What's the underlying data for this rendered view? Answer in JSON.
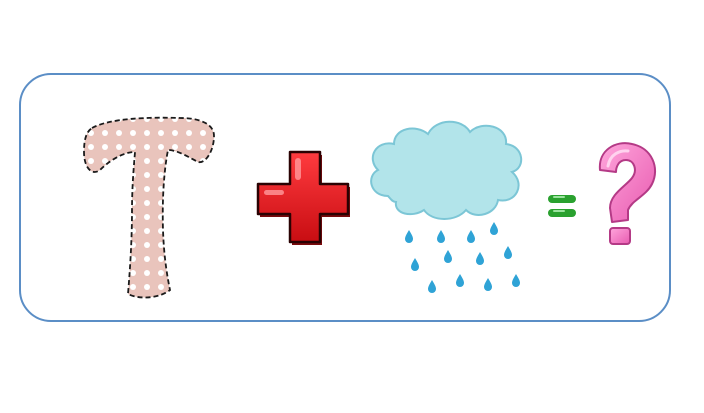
{
  "puzzle": {
    "letter": "T",
    "plus_symbol": "+",
    "cloud": "rain-cloud",
    "equals_symbol": "=",
    "answer_symbol": "?"
  },
  "colors": {
    "frame_border": "#5b8ec6",
    "letter_fill": "#e9c4bc",
    "letter_dots": "#ffffff",
    "letter_outline": "#1a1a1a",
    "plus_fill": "#e0151b",
    "plus_shadow": "#8a0a0d",
    "cloud_fill": "#b2e4ea",
    "cloud_outline": "#7cc6d6",
    "rain_drop": "#2fa3d6",
    "equals": "#2aa12f",
    "question": "#f07ac0",
    "question_outline": "#b43a86"
  },
  "icons": [
    "letter-t-icon",
    "plus-icon",
    "rain-cloud-icon",
    "raindrop-icon",
    "equals-icon",
    "question-mark-icon"
  ]
}
